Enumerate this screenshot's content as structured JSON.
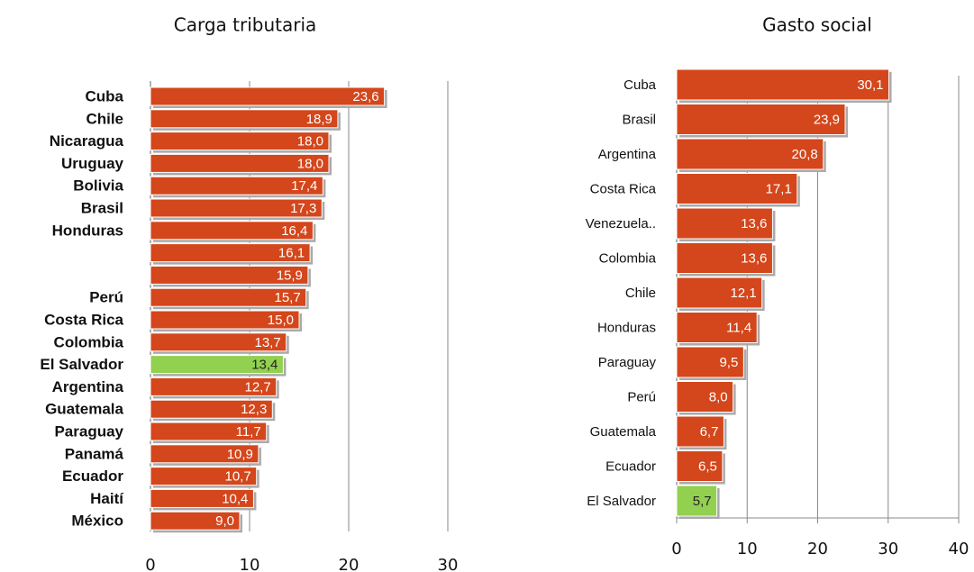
{
  "chart_data": [
    {
      "type": "bar",
      "orientation": "horizontal",
      "title": "Carga tributaria",
      "categories": [
        "Cuba",
        "Chile",
        "Nicaragua",
        "Uruguay",
        "Bolivia",
        "Brasil",
        "Honduras",
        null,
        null,
        "Perú",
        "Costa Rica",
        "Colombia",
        "El Salvador",
        "Argentina",
        "Guatemala",
        "Paraguay",
        "Panamá",
        "Ecuador",
        "Haití",
        "México"
      ],
      "values": [
        23.6,
        18.9,
        18.0,
        18.0,
        17.4,
        17.3,
        16.4,
        16.1,
        15.9,
        15.7,
        15.0,
        13.7,
        13.4,
        12.7,
        12.3,
        11.7,
        10.9,
        10.7,
        10.4,
        9.0
      ],
      "value_labels": [
        "23,6",
        "18,9",
        "18,0",
        "18,0",
        "17,4",
        "17,3",
        "16,4",
        "16,1",
        "15,9",
        "15,7",
        "15,0",
        "13,7",
        "13,4",
        "12,7",
        "12,3",
        "11,7",
        "10,9",
        "10,7",
        "10,4",
        "9,0"
      ],
      "colors": [
        "#d4461b",
        "#d4461b",
        "#d4461b",
        "#d4461b",
        "#d4461b",
        "#d4461b",
        "#d4461b",
        "#d4461b",
        "#d4461b",
        "#d4461b",
        "#d4461b",
        "#d4461b",
        "#92d050",
        "#d4461b",
        "#d4461b",
        "#d4461b",
        "#d4461b",
        "#d4461b",
        "#d4461b",
        "#d4461b"
      ],
      "xlim": [
        0,
        30
      ],
      "xticks": [
        0,
        10,
        20,
        30
      ],
      "grid": true
    },
    {
      "type": "bar",
      "orientation": "horizontal",
      "title": "Gasto social",
      "categories": [
        "Cuba",
        "Brasil",
        "Argentina",
        "Costa Rica",
        "Venezuela..",
        "Colombia",
        "Chile",
        "Honduras",
        "Paraguay",
        "Perú",
        "Guatemala",
        "Ecuador",
        "El Salvador"
      ],
      "values": [
        30.1,
        23.9,
        20.8,
        17.1,
        13.6,
        13.6,
        12.1,
        11.4,
        9.5,
        8.0,
        6.7,
        6.5,
        5.7
      ],
      "value_labels": [
        "30,1",
        "23,9",
        "20,8",
        "17,1",
        "13,6",
        "13,6",
        "12,1",
        "11,4",
        "9,5",
        "8,0",
        "6,7",
        "6,5",
        "5,7"
      ],
      "colors": [
        "#d4461b",
        "#d4461b",
        "#d4461b",
        "#d4461b",
        "#d4461b",
        "#d4461b",
        "#d4461b",
        "#d4461b",
        "#d4461b",
        "#d4461b",
        "#d4461b",
        "#d4461b",
        "#92d050"
      ],
      "xlim": [
        0,
        40
      ],
      "xticks": [
        0,
        10,
        20,
        30,
        40
      ],
      "grid": true
    }
  ]
}
